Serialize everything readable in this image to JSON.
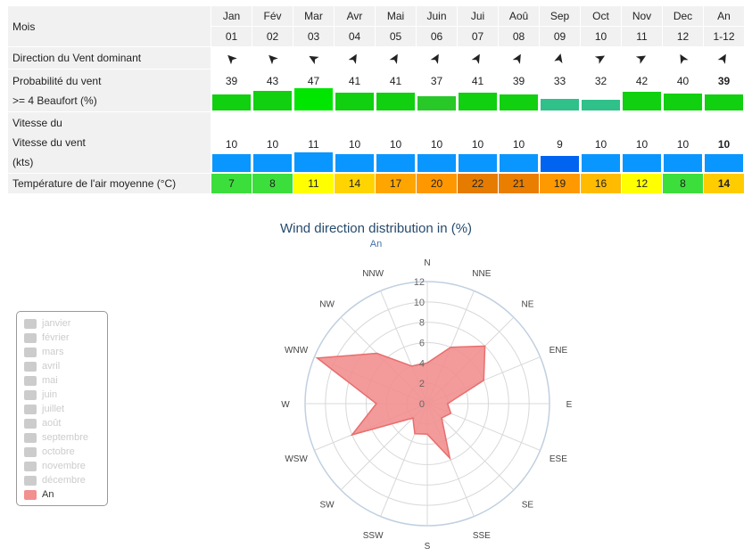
{
  "table": {
    "row_month_label": "Mois",
    "months": [
      "Jan",
      "Fév",
      "Mar",
      "Avr",
      "Mai",
      "Juin",
      "Jui",
      "Aoû",
      "Sep",
      "Oct",
      "Nov",
      "Dec",
      "An"
    ],
    "month_nums": [
      "01",
      "02",
      "03",
      "04",
      "05",
      "06",
      "07",
      "08",
      "09",
      "10",
      "11",
      "12",
      "1-12"
    ],
    "dir_label": "Direction du Vent dominant",
    "dir_arrows": [
      "➤",
      "➤",
      "➤",
      "➤",
      "➤",
      "➤",
      "➤",
      "➤",
      "➤",
      "➤",
      "➤",
      "➤",
      "➤"
    ],
    "dir_degrees": [
      225,
      225,
      210,
      300,
      300,
      300,
      300,
      300,
      285,
      330,
      330,
      240,
      300
    ],
    "prob_label_1": "Probabilité du vent",
    "prob_label_2": ">= 4 Beaufort (%)",
    "prob_values": [
      "39",
      "43",
      "47",
      "41",
      "41",
      "37",
      "41",
      "39",
      "33",
      "32",
      "42",
      "40",
      "39"
    ],
    "prob_numbers": [
      39,
      43,
      47,
      41,
      41,
      37,
      41,
      39,
      33,
      32,
      42,
      40,
      39
    ],
    "prob_colors": [
      "#10d010",
      "#10d010",
      "#00e600",
      "#10d010",
      "#10d010",
      "#28c828",
      "#10d010",
      "#10d010",
      "#30c08a",
      "#30c08a",
      "#10d010",
      "#10d010",
      "#10d010"
    ],
    "speed_label_0": "Vitesse du",
    "speed_label_1": "Vitesse du vent",
    "speed_label_2": "(kts)",
    "speed_values": [
      "10",
      "10",
      "11",
      "10",
      "10",
      "10",
      "10",
      "10",
      "9",
      "10",
      "10",
      "10",
      "10"
    ],
    "speed_numbers": [
      10,
      10,
      11,
      10,
      10,
      10,
      10,
      10,
      9,
      10,
      10,
      10,
      10
    ],
    "speed_colors": [
      "#0a96ff",
      "#0a96ff",
      "#0a96ff",
      "#0a96ff",
      "#0a96ff",
      "#0a96ff",
      "#0a96ff",
      "#0a96ff",
      "#0064f0",
      "#0a96ff",
      "#0a96ff",
      "#0a96ff",
      "#0a96ff"
    ],
    "temp_label": "Température de l'air moyenne (°C)",
    "temp_values": [
      "7",
      "8",
      "11",
      "14",
      "17",
      "20",
      "22",
      "21",
      "19",
      "16",
      "12",
      "8",
      "14"
    ],
    "temp_colors": [
      "#3cde3c",
      "#3cde3c",
      "#ffff00",
      "#ffd400",
      "#ffa500",
      "#ff9700",
      "#e57c00",
      "#ea7e00",
      "#ff9900",
      "#ffbb00",
      "#ffff00",
      "#3cde3c",
      "#ffcc00"
    ]
  },
  "chart_data": {
    "type": "polar-area",
    "title": "Wind direction distribution in (%)",
    "subtitle": "An",
    "categories": [
      "N",
      "NNE",
      "NE",
      "ENE",
      "E",
      "ESE",
      "SE",
      "SSE",
      "S",
      "SSW",
      "SW",
      "WSW",
      "W",
      "WNW",
      "NW",
      "NNW"
    ],
    "series": [
      {
        "name": "An",
        "values": [
          4,
          6,
          8,
          6,
          2,
          2.5,
          2,
          5.8,
          3,
          3.2,
          2,
          8,
          5,
          11.7,
          7,
          4
        ],
        "color": "#f28f8f"
      }
    ],
    "rlim": [
      0,
      12
    ],
    "r_ticks": [
      "0",
      "2",
      "4",
      "6",
      "8",
      "10",
      "12"
    ],
    "legend_position": "left",
    "legend": [
      "janvier",
      "février",
      "mars",
      "avril",
      "mai",
      "juin",
      "juillet",
      "août",
      "septembre",
      "octobre",
      "novembre",
      "décembre",
      "An"
    ],
    "legend_active": "An"
  }
}
